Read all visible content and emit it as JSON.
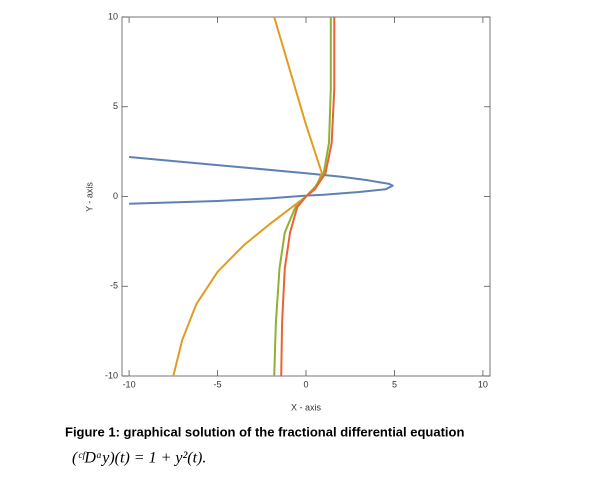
{
  "chart_data": {
    "type": "line",
    "x_label": "X - axis",
    "y_label": "Y - axis",
    "xlim": [
      -10.4,
      10.4
    ],
    "ylim": [
      -10,
      10
    ],
    "xticks": [
      -10,
      -5,
      0,
      5,
      10
    ],
    "yticks": [
      -10,
      -5,
      0,
      5,
      10
    ],
    "series": [
      {
        "color": "#5e81b5",
        "x": [
          -10,
          -5,
          0,
          2,
          3.5,
          4.7,
          4.9,
          4.5,
          3,
          1,
          0,
          -2,
          -5,
          -10
        ],
        "values": [
          2.2,
          1.75,
          1.3,
          1.1,
          0.9,
          0.7,
          0.6,
          0.4,
          0.25,
          0.1,
          0.05,
          -0.1,
          -0.25,
          -0.4
        ]
      },
      {
        "color": "#e19c24",
        "x": [
          -1.8,
          -1.2,
          -0.6,
          0,
          0.5,
          0.9,
          0.6,
          0,
          -0.8,
          -2,
          -3.5,
          -5,
          -6.2,
          -7,
          -7.5
        ],
        "values": [
          10,
          8,
          6,
          4,
          2.5,
          1.3,
          0.6,
          0,
          -0.6,
          -1.5,
          -2.7,
          -4.2,
          -6,
          -8,
          -10
        ]
      },
      {
        "color": "#8fb032",
        "x": [
          1.4,
          1.4,
          1.3,
          1.0,
          0.5,
          0,
          -0.6,
          -1.2,
          -1.5,
          -1.7,
          -1.8
        ],
        "values": [
          10,
          6,
          3,
          1.3,
          0.5,
          0,
          -0.6,
          -2,
          -4,
          -7,
          -10
        ]
      },
      {
        "color": "#eb6235",
        "x": [
          1.6,
          1.6,
          1.45,
          1.1,
          0.5,
          0,
          -0.5,
          -0.9,
          -1.2,
          -1.35,
          -1.4
        ],
        "values": [
          10,
          6,
          3,
          1.3,
          0.4,
          0,
          -0.6,
          -2,
          -4,
          -7,
          -10
        ]
      }
    ],
    "caption": "Figure 1: graphical solution of the fractional differential equation",
    "equation": "(ᶜᶠDᵅy)(t) = 1 + y²(t)."
  }
}
